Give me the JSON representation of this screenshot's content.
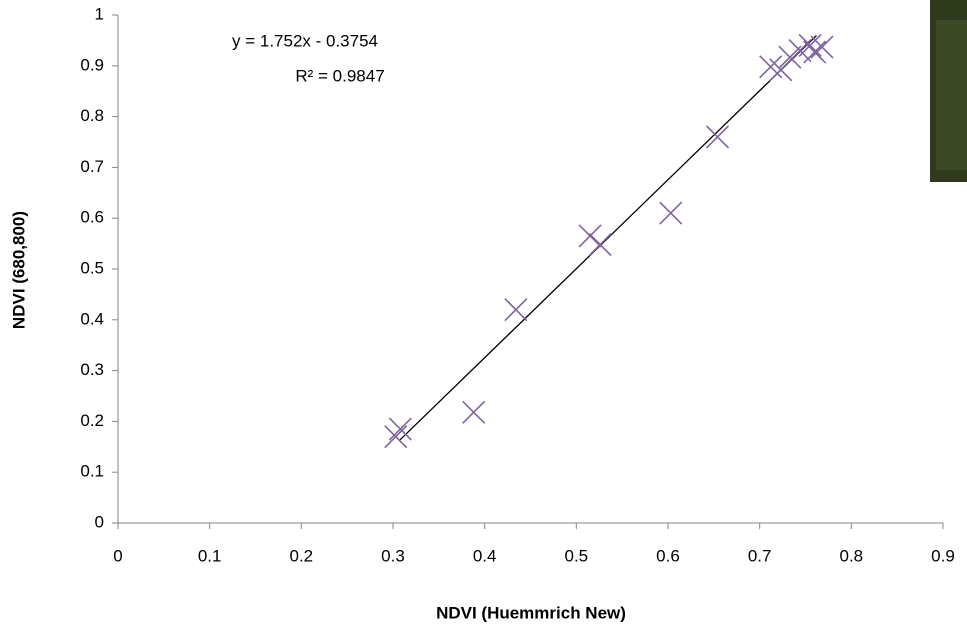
{
  "chart_data": {
    "type": "scatter",
    "x_label": "NDVI (Huemmrich New)",
    "y_label": "NDVI (680,800)",
    "xlim": [
      0,
      0.9
    ],
    "xticks": [
      0,
      0.1,
      0.2,
      0.3,
      0.4,
      0.5,
      0.6,
      0.7,
      0.8,
      0.9
    ],
    "ylim": [
      0,
      1
    ],
    "yticks": [
      0,
      0.1,
      0.2,
      0.3,
      0.4,
      0.5,
      0.6,
      0.7,
      0.8,
      0.9,
      1
    ],
    "color": "#8064a2",
    "x": [
      0.303,
      0.308,
      0.388,
      0.434,
      0.515,
      0.526,
      0.603,
      0.654,
      0.712,
      0.723,
      0.733,
      0.744,
      0.755,
      0.76,
      0.768
    ],
    "y": [
      0.17,
      0.185,
      0.218,
      0.42,
      0.565,
      0.548,
      0.61,
      0.76,
      0.898,
      0.892,
      0.917,
      0.93,
      0.94,
      0.927,
      0.937
    ],
    "trendline": {
      "equation": "y = 1.752x - 0.3754",
      "r2": "R² = 0.9847",
      "slope": 1.752,
      "intercept": -0.3754,
      "x_range": [
        0.307,
        0.762
      ]
    }
  }
}
